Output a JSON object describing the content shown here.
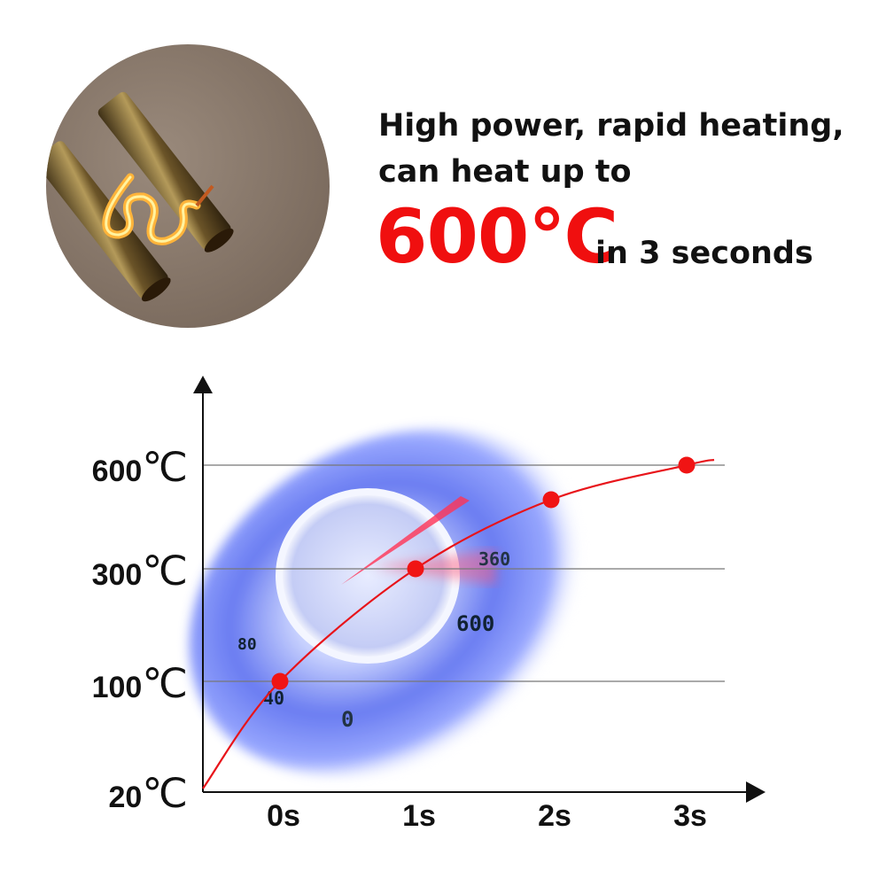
{
  "headline": {
    "line1": "High power, rapid heating,",
    "line2": "can heat up to",
    "highlight": "600℃",
    "tail": "in 3 seconds",
    "highlight_color": "#f00f0f"
  },
  "chart_data": {
    "type": "line",
    "title": "",
    "xlabel": "",
    "ylabel": "",
    "x_ticks": [
      "0s",
      "1s",
      "2s",
      "3s"
    ],
    "y_ticks": [
      {
        "value": 20,
        "label": "20",
        "unit": "℃"
      },
      {
        "value": 100,
        "label": "100",
        "unit": "℃"
      },
      {
        "value": 300,
        "label": "300",
        "unit": "℃"
      },
      {
        "value": 600,
        "label": "600",
        "unit": "℃"
      }
    ],
    "y_scale": "non-uniform (ticks evenly spaced by label)",
    "grid": "horizontal at 100, 300, 600",
    "series": [
      {
        "x": [
          0,
          1,
          2,
          3
        ],
        "y": [
          100,
          300,
          500,
          600
        ],
        "color": "#e8141a"
      }
    ],
    "background": "speedometer"
  }
}
